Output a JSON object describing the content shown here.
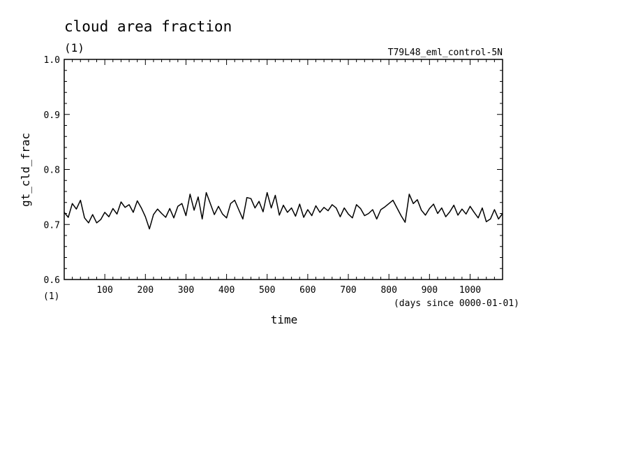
{
  "chart_data": {
    "type": "line",
    "title": "cloud area fraction",
    "title_units": "(1)",
    "subtitle_right": "T79L48_eml_control-5N",
    "ylabel": "gt_cld_frac",
    "xlabel": "time",
    "x_units": "(days since 0000-01-01)",
    "y_units_corner": "(1)",
    "xlim": [
      0,
      1080
    ],
    "ylim": [
      0.6,
      1.0
    ],
    "x_ticks": [
      100,
      200,
      300,
      400,
      500,
      600,
      700,
      800,
      900,
      1000
    ],
    "x_tick_labels": [
      "100",
      "200",
      "300",
      "400",
      "500",
      "600",
      "700",
      "800",
      "900",
      "1000"
    ],
    "y_ticks": [
      0.6,
      0.7,
      0.8,
      0.9,
      1.0
    ],
    "y_tick_labels": [
      "0.6",
      "0.7",
      "0.8",
      "0.9",
      "1.0"
    ],
    "line_color": "#000000",
    "series": [
      {
        "x": [
          0,
          10,
          20,
          30,
          40,
          50,
          60,
          70,
          80,
          90,
          100,
          110,
          120,
          130,
          140,
          150,
          160,
          170,
          180,
          190,
          200,
          210,
          220,
          230,
          240,
          250,
          260,
          270,
          280,
          290,
          300,
          310,
          320,
          330,
          340,
          350,
          360,
          370,
          380,
          390,
          400,
          410,
          420,
          430,
          440,
          450,
          460,
          470,
          480,
          490,
          500,
          510,
          520,
          530,
          540,
          550,
          560,
          570,
          580,
          590,
          600,
          610,
          620,
          630,
          640,
          650,
          660,
          670,
          680,
          690,
          700,
          710,
          720,
          730,
          740,
          750,
          760,
          770,
          780,
          790,
          800,
          810,
          820,
          830,
          840,
          850,
          860,
          870,
          880,
          890,
          900,
          910,
          920,
          930,
          940,
          950,
          960,
          970,
          980,
          990,
          1000,
          1010,
          1020,
          1030,
          1040,
          1050,
          1060,
          1070,
          1080
        ],
        "y": [
          0.722,
          0.713,
          0.738,
          0.728,
          0.744,
          0.712,
          0.703,
          0.718,
          0.703,
          0.709,
          0.722,
          0.714,
          0.729,
          0.719,
          0.741,
          0.731,
          0.736,
          0.722,
          0.743,
          0.73,
          0.714,
          0.692,
          0.718,
          0.728,
          0.72,
          0.713,
          0.729,
          0.712,
          0.733,
          0.738,
          0.716,
          0.755,
          0.726,
          0.75,
          0.71,
          0.758,
          0.738,
          0.718,
          0.733,
          0.719,
          0.712,
          0.738,
          0.744,
          0.727,
          0.71,
          0.749,
          0.747,
          0.73,
          0.742,
          0.723,
          0.758,
          0.73,
          0.753,
          0.717,
          0.735,
          0.722,
          0.73,
          0.715,
          0.737,
          0.713,
          0.727,
          0.716,
          0.734,
          0.722,
          0.731,
          0.725,
          0.736,
          0.73,
          0.714,
          0.73,
          0.719,
          0.712,
          0.736,
          0.729,
          0.716,
          0.72,
          0.727,
          0.71,
          0.727,
          0.732,
          0.738,
          0.744,
          0.73,
          0.716,
          0.704,
          0.755,
          0.738,
          0.745,
          0.726,
          0.717,
          0.729,
          0.737,
          0.72,
          0.73,
          0.714,
          0.723,
          0.735,
          0.717,
          0.728,
          0.719,
          0.733,
          0.722,
          0.712,
          0.73,
          0.705,
          0.71,
          0.727,
          0.71,
          0.72
        ]
      }
    ]
  }
}
